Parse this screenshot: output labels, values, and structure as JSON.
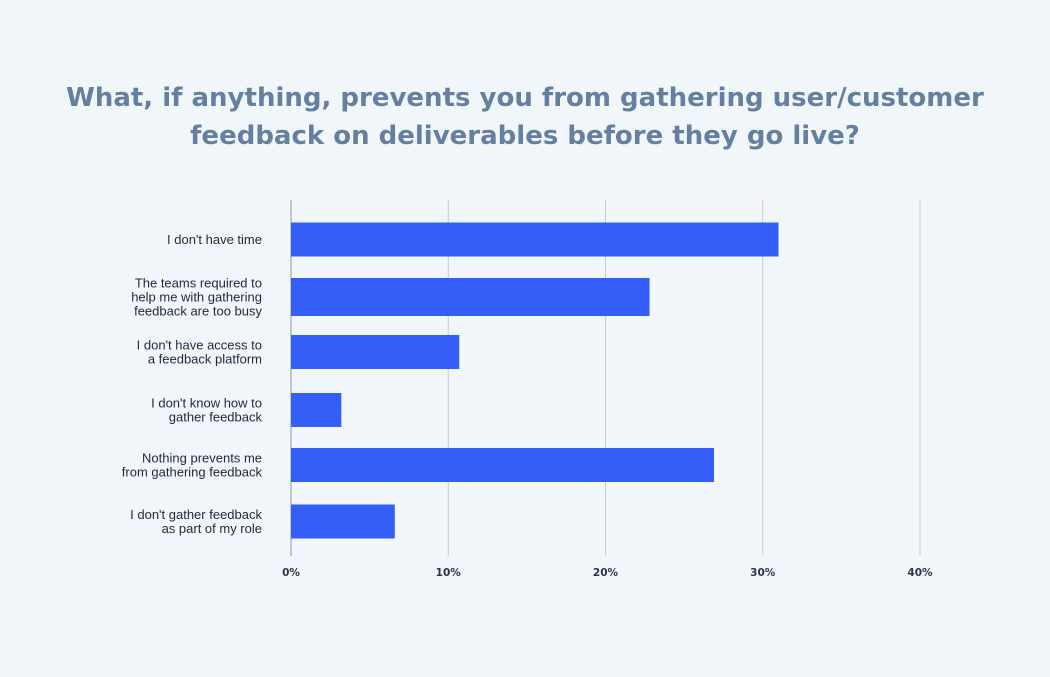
{
  "title": {
    "line1": "What, if anything, prevents you from gathering user/customer",
    "line2": "feedback on deliverables before they go live?"
  },
  "colors": {
    "bar": "#345ef8",
    "title": "#647f9f",
    "grid": "#c3ccdb",
    "background": "#f1f6fb"
  },
  "chart_data": {
    "type": "bar",
    "orientation": "horizontal",
    "title": "What, if anything, prevents you from gathering user/customer feedback on deliverables before they go live?",
    "categories": [
      [
        "I don't have time"
      ],
      [
        "The teams required to",
        "help me with gathering",
        "feedback are too busy"
      ],
      [
        "I don't have access to",
        "a feedback platform"
      ],
      [
        "I don't know how to",
        "gather feedback"
      ],
      [
        "Nothing prevents me",
        "from gathering feedback"
      ],
      [
        "I don't gather feedback",
        "as part of my role"
      ]
    ],
    "values": [
      31,
      22.8,
      10.7,
      3.2,
      26.9,
      6.6
    ],
    "xlim": [
      0,
      40
    ],
    "xticks": [
      0,
      10,
      20,
      30,
      40
    ],
    "xtick_labels": [
      "0%",
      "10%",
      "20%",
      "30%",
      "40%"
    ],
    "grid": "vertical",
    "legend": "none"
  }
}
